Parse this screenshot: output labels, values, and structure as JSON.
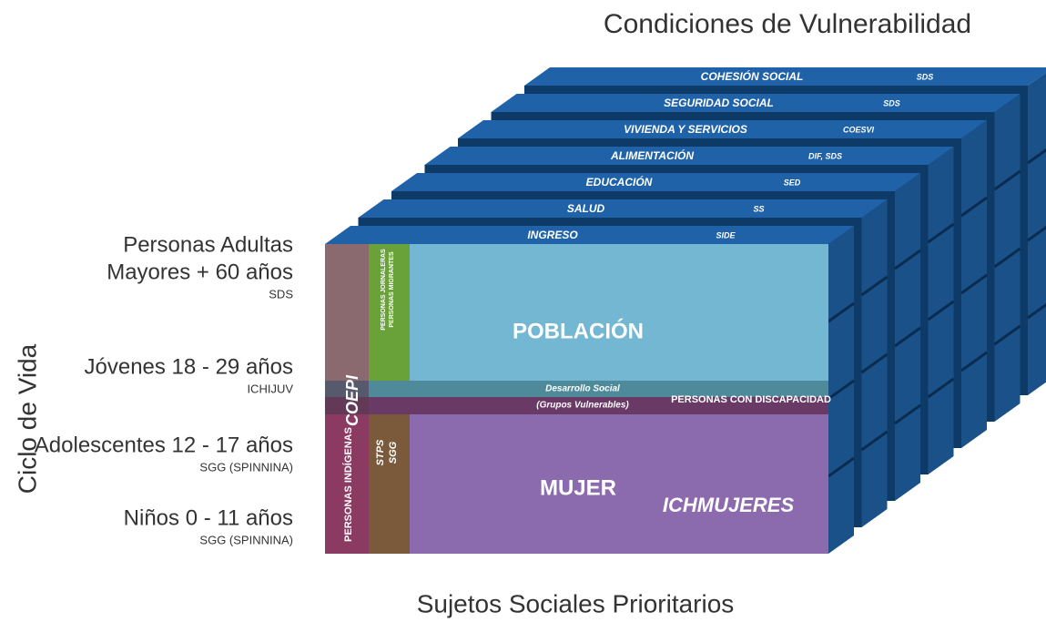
{
  "title_top": "Condiciones de Vulnerabilidad",
  "title_bottom": "Sujetos Sociales Prioritarios",
  "left_axis": "Ciclo de Vida",
  "layers": [
    {
      "label": "INGRESO",
      "agency": "SIDE"
    },
    {
      "label": "SALUD",
      "agency": "SS"
    },
    {
      "label": "EDUCACIÓN",
      "agency": "SED"
    },
    {
      "label": "ALIMENTACIÓN",
      "agency": "DIF, SDS"
    },
    {
      "label": "VIVIENDA Y SERVICIOS",
      "agency": "COESVI"
    },
    {
      "label": "SEGURIDAD SOCIAL",
      "agency": "SDS"
    },
    {
      "label": "COHESIÓN SOCIAL",
      "agency": "SDS"
    }
  ],
  "age_groups": [
    {
      "lines": [
        "Personas Adultas",
        "Mayores + 60 años"
      ],
      "agency": "SDS"
    },
    {
      "lines": [
        "Jóvenes 18 - 29 años"
      ],
      "agency": "ICHIJUV"
    },
    {
      "lines": [
        "Adolescentes 12 - 17 años"
      ],
      "agency": "SGG (SPINNINA)"
    },
    {
      "lines": [
        "Niños 0 - 11 años"
      ],
      "agency": "SGG (SPINNINA)"
    }
  ],
  "front": {
    "poblacion": "POBLACIÓN",
    "mujer": "MUJER",
    "ichmujeres": "ICHMUJERES",
    "desarrollo": [
      "Desarrollo Social",
      "(Grupos Vulnerables)"
    ],
    "discapacidad": "PERSONAS CON DISCAPACIDAD",
    "coepi": "COEPI",
    "indigenas": "PERSONAS INDÍGENAS",
    "jornaleras": [
      "PERSONAS JORNALERAS",
      "PERSONAS MIGRANTES"
    ],
    "stps_sgg": [
      "STPS",
      "SGG"
    ]
  }
}
